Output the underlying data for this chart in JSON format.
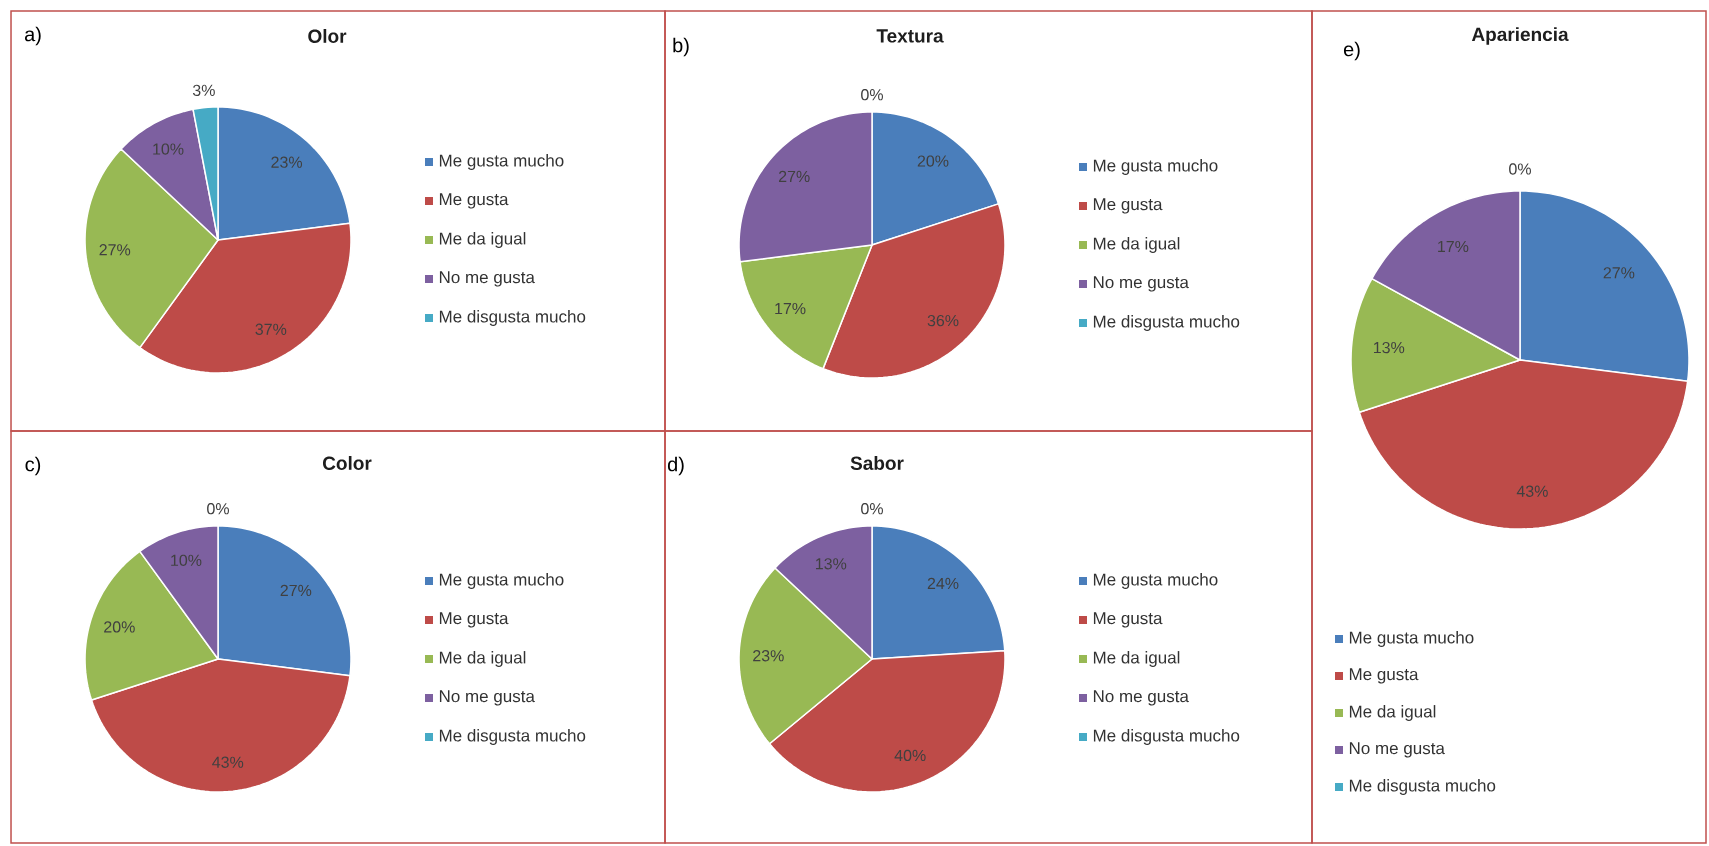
{
  "chart_data": [
    {
      "type": "pie",
      "title": "Olor",
      "annotations": [
        "a)"
      ],
      "categories": [
        "Me gusta mucho",
        "Me gusta",
        "Me da igual",
        "No me gusta",
        "Me disgusta mucho"
      ],
      "values": [
        23,
        37,
        27,
        10,
        3
      ],
      "value_labels": [
        "23%",
        "37%",
        "27%",
        "10%",
        "3%"
      ],
      "colors": [
        "#4a7ebb",
        "#be4b48",
        "#98b954",
        "#7d60a0",
        "#46aac5"
      ],
      "legend": "right"
    },
    {
      "type": "pie",
      "title": "Textura",
      "annotations": [
        "b)"
      ],
      "categories": [
        "Me gusta mucho",
        "Me gusta",
        "Me da igual",
        "No me gusta",
        "Me disgusta mucho"
      ],
      "values": [
        20,
        36,
        17,
        27,
        0
      ],
      "value_labels": [
        "20%",
        "36%",
        "17%",
        "27%",
        "0%"
      ],
      "colors": [
        "#4a7ebb",
        "#be4b48",
        "#98b954",
        "#7d60a0",
        "#46aac5"
      ],
      "legend": "right"
    },
    {
      "type": "pie",
      "title": "Color",
      "annotations": [
        "c)"
      ],
      "categories": [
        "Me gusta mucho",
        "Me gusta",
        "Me da igual",
        "No me gusta",
        "Me disgusta mucho"
      ],
      "values": [
        27,
        43,
        20,
        10,
        0
      ],
      "value_labels": [
        "27%",
        "43%",
        "20%",
        "10%",
        "0%"
      ],
      "colors": [
        "#4a7ebb",
        "#be4b48",
        "#98b954",
        "#7d60a0",
        "#46aac5"
      ],
      "legend": "right"
    },
    {
      "type": "pie",
      "title": "Sabor",
      "annotations": [
        "d)"
      ],
      "categories": [
        "Me gusta mucho",
        "Me gusta",
        "Me da igual",
        "No me gusta",
        "Me disgusta mucho"
      ],
      "values": [
        24,
        40,
        23,
        13,
        0
      ],
      "value_labels": [
        "24%",
        "40%",
        "23%",
        "13%",
        "0%"
      ],
      "colors": [
        "#4a7ebb",
        "#be4b48",
        "#98b954",
        "#7d60a0",
        "#46aac5"
      ],
      "legend": "right"
    },
    {
      "type": "pie",
      "title": "Apariencia",
      "annotations": [
        "e)"
      ],
      "categories": [
        "Me gusta mucho",
        "Me gusta",
        "Me da igual",
        "No me gusta",
        "Me disgusta mucho"
      ],
      "values": [
        27,
        43,
        13,
        17,
        0
      ],
      "value_labels": [
        "27%",
        "43%",
        "13%",
        "17%",
        "0%"
      ],
      "colors": [
        "#4a7ebb",
        "#be4b48",
        "#98b954",
        "#7d60a0",
        "#46aac5"
      ],
      "legend": "bottom"
    }
  ]
}
